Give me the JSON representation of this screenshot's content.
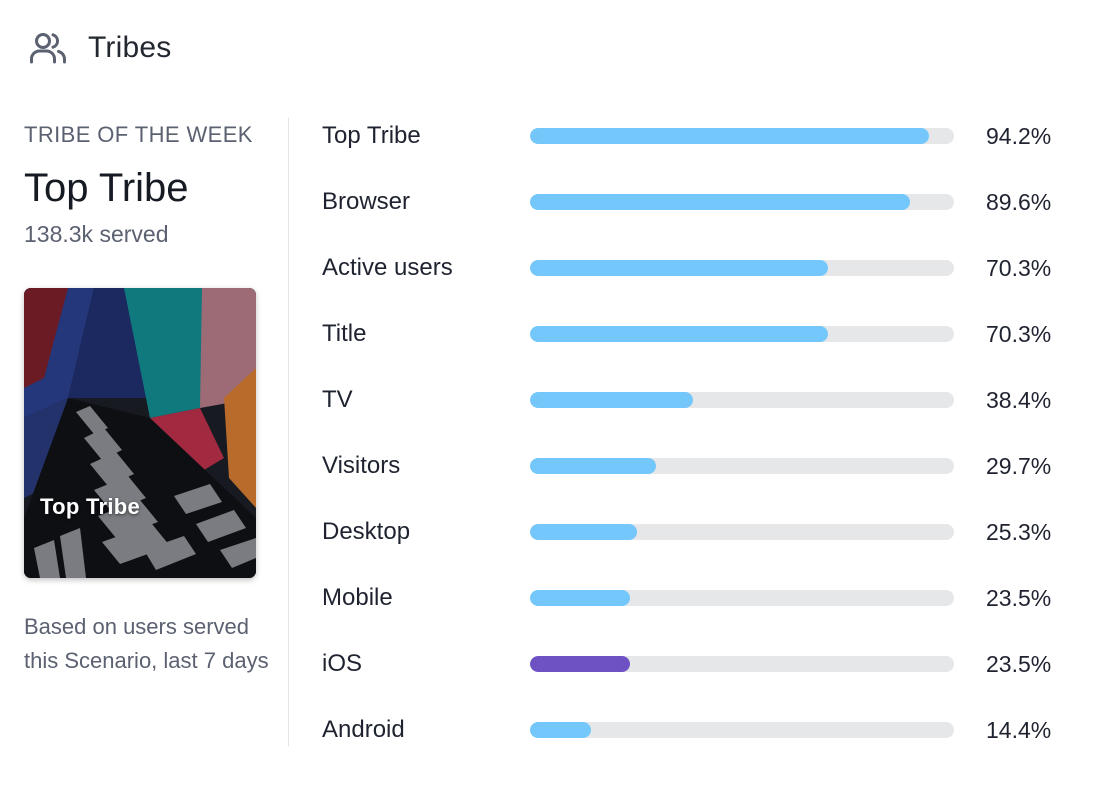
{
  "header": {
    "title": "Tribes",
    "icon": "users-icon"
  },
  "sidebar": {
    "eyebrow": "TRIBE OF THE WEEK",
    "tribe_name": "Top Tribe",
    "served": "138.3k served",
    "card_label": "Top Tribe",
    "note": "Based on users served this Scenario, last 7 days"
  },
  "colors": {
    "bar": "#74c7fb",
    "bar_highlight": "#6e52c4",
    "track": "#e6e7e9"
  },
  "tribes": [
    {
      "label": "Top Tribe",
      "percent_text": "94.2%",
      "value": 94.2,
      "color": "#74c7fb"
    },
    {
      "label": "Browser",
      "percent_text": "89.6%",
      "value": 89.6,
      "color": "#74c7fb"
    },
    {
      "label": "Active users",
      "percent_text": "70.3%",
      "value": 70.3,
      "color": "#74c7fb"
    },
    {
      "label": "Title",
      "percent_text": "70.3%",
      "value": 70.3,
      "color": "#74c7fb"
    },
    {
      "label": "TV",
      "percent_text": "38.4%",
      "value": 38.4,
      "color": "#74c7fb"
    },
    {
      "label": "Visitors",
      "percent_text": "29.7%",
      "value": 29.7,
      "color": "#74c7fb"
    },
    {
      "label": "Desktop",
      "percent_text": "25.3%",
      "value": 25.3,
      "color": "#74c7fb"
    },
    {
      "label": "Mobile",
      "percent_text": "23.5%",
      "value": 23.5,
      "color": "#74c7fb"
    },
    {
      "label": "iOS",
      "percent_text": "23.5%",
      "value": 23.5,
      "color": "#6e52c4"
    },
    {
      "label": "Android",
      "percent_text": "14.4%",
      "value": 14.4,
      "color": "#74c7fb"
    }
  ]
}
